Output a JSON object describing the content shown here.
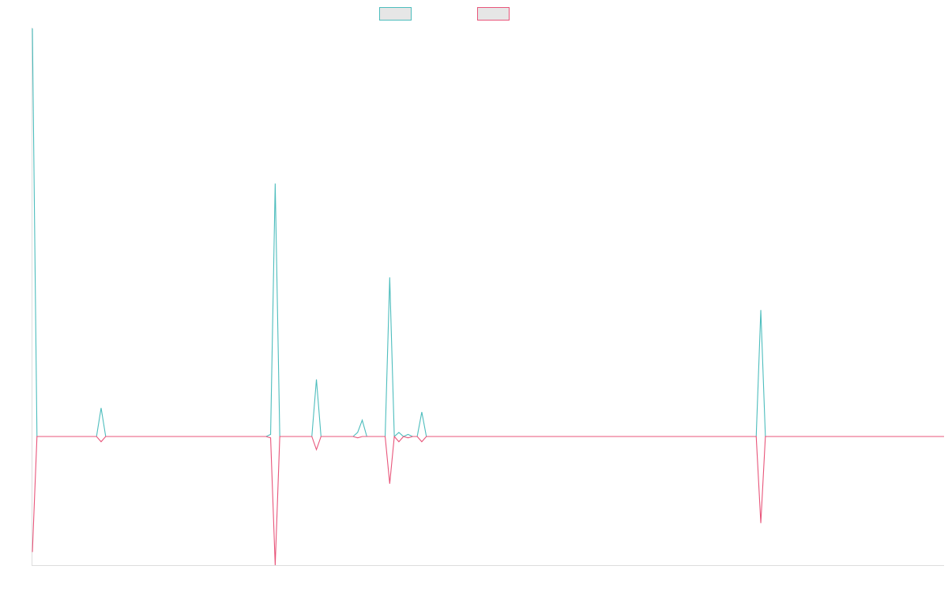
{
  "chart_data": {
    "type": "line",
    "title": "",
    "xlabel": "",
    "ylabel": "",
    "legend": {
      "position": "top-center"
    },
    "grid": false,
    "ylim": [
      -1.0,
      1.0
    ],
    "x_count": 200,
    "series": [
      {
        "key": "upper",
        "color": "#4dbdbd",
        "direction": "up",
        "points": [
          {
            "x": 0,
            "y": 1.0
          },
          {
            "x": 15,
            "y": 0.07
          },
          {
            "x": 52,
            "y": 0.005
          },
          {
            "x": 53,
            "y": 0.62
          },
          {
            "x": 62,
            "y": 0.14
          },
          {
            "x": 71,
            "y": 0.01
          },
          {
            "x": 72,
            "y": 0.04
          },
          {
            "x": 78,
            "y": 0.39
          },
          {
            "x": 80,
            "y": 0.01
          },
          {
            "x": 82,
            "y": 0.005
          },
          {
            "x": 85,
            "y": 0.06
          },
          {
            "x": 159,
            "y": 0.31
          }
        ]
      },
      {
        "key": "lower",
        "color": "#e8557a",
        "direction": "down",
        "points": [
          {
            "x": 0,
            "y": 0.44
          },
          {
            "x": 15,
            "y": 0.02
          },
          {
            "x": 52,
            "y": 0.005
          },
          {
            "x": 53,
            "y": 0.49
          },
          {
            "x": 62,
            "y": 0.05
          },
          {
            "x": 71,
            "y": 0.005
          },
          {
            "x": 78,
            "y": 0.18
          },
          {
            "x": 80,
            "y": 0.02
          },
          {
            "x": 82,
            "y": 0.005
          },
          {
            "x": 85,
            "y": 0.02
          },
          {
            "x": 159,
            "y": 0.33
          }
        ]
      }
    ]
  }
}
